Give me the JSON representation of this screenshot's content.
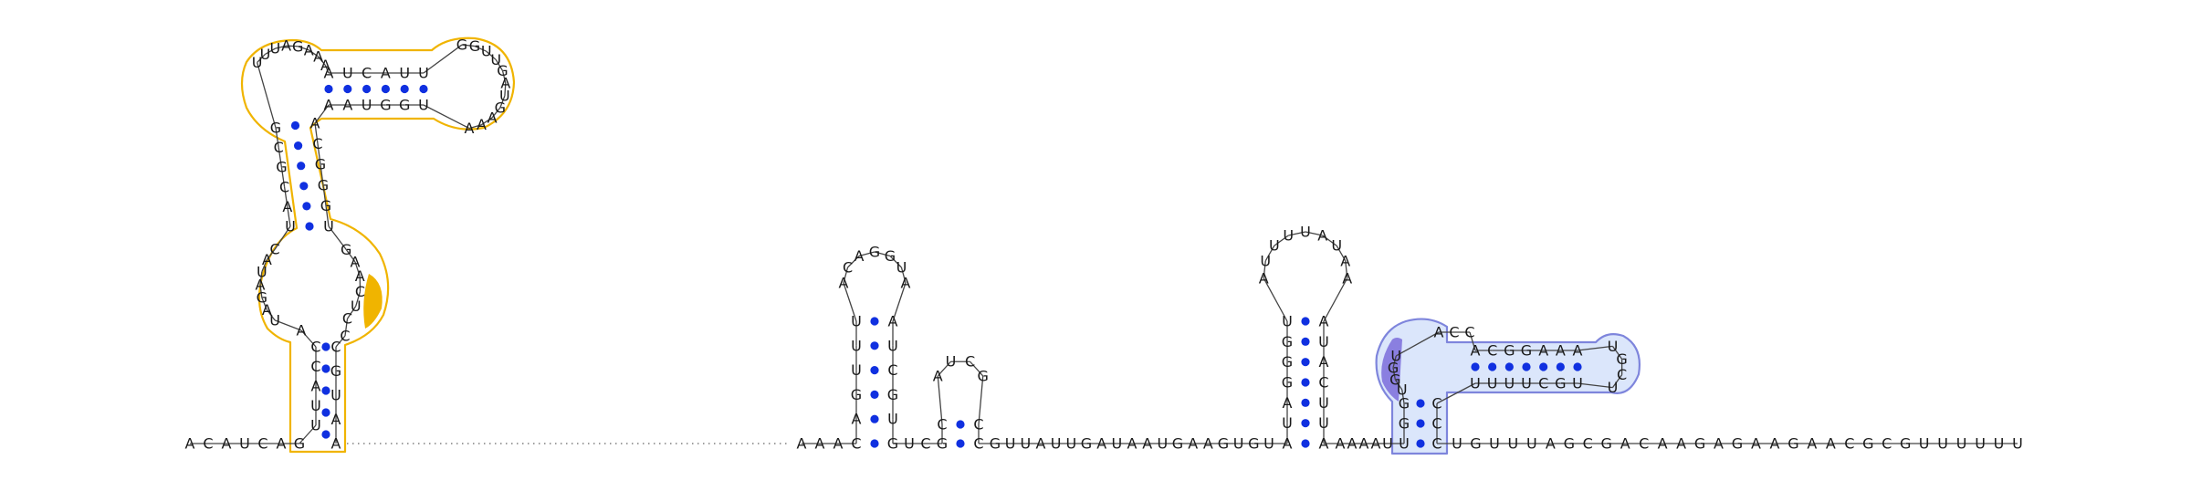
{
  "colors": {
    "domain_orange": "#f0b400",
    "domain_blue_fill": "#dbe6fb",
    "domain_blue_stroke": "#7e85dc",
    "domain_blue_dark": "#8a7fe0",
    "base_pair_dot": "#1030e0"
  },
  "sequence": {
    "left_end": [
      "A",
      "C",
      "A",
      "U",
      "C",
      "A",
      "G"
    ],
    "structure1": {
      "stem1_left": [
        "U",
        "U",
        "A",
        "C",
        "C"
      ],
      "stem1_right": [
        "C",
        "G",
        "U",
        "A",
        "A"
      ],
      "closing_left": [
        "A"
      ],
      "closing_right": [
        "C"
      ],
      "interior_left": [
        "U",
        "A",
        "G",
        "A",
        "U",
        "A",
        "C"
      ],
      "interior_right": [
        "G",
        "A",
        "A",
        "C",
        "U",
        "C"
      ],
      "stem2_left": [
        "U",
        "A",
        "C",
        "G",
        "C",
        "G"
      ],
      "stem2_right": [
        "A",
        "C",
        "G",
        "G",
        "G",
        "U"
      ],
      "terminal_loop_left": [
        "U",
        "U",
        "U",
        "A",
        "G",
        "A",
        "A",
        "A"
      ],
      "stem3_top": [
        "A",
        "U",
        "C",
        "A",
        "U",
        "U"
      ],
      "stem3_bottom": [
        "U",
        "G",
        "G",
        "U",
        "A",
        "A"
      ],
      "terminal_loop_right": [
        "G",
        "G",
        "U",
        "U",
        "G",
        "A",
        "U",
        "G",
        "A",
        "A",
        "A"
      ]
    },
    "linker_gap": "",
    "spacer1": [
      "A",
      "A",
      "A"
    ],
    "hairpin1": {
      "stem_left": [
        "C",
        "A",
        "G",
        "U",
        "U",
        "U"
      ],
      "loop": [
        "A",
        "C",
        "A",
        "G",
        "G",
        "U",
        "A"
      ],
      "stem_right": [
        "A",
        "U",
        "C",
        "G",
        "U",
        "G"
      ]
    },
    "spacer2": [
      "U",
      "C"
    ],
    "hairpin2": {
      "stem_left": [
        "G",
        "C"
      ],
      "loop": [
        "A",
        "U",
        "C",
        "G"
      ],
      "stem_right": [
        "C",
        "C"
      ]
    },
    "spacer3": [
      "G",
      "U",
      "U",
      "A",
      "U",
      "U",
      "G",
      "A",
      "U",
      "A",
      "A",
      "U",
      "G",
      "A",
      "A",
      "G",
      "U",
      "G",
      "U"
    ],
    "hairpin3": {
      "stem_left": [
        "A",
        "U",
        "A",
        "G",
        "G",
        "G",
        "U"
      ],
      "loop": [
        "A",
        "U",
        "U",
        "U",
        "U",
        "A",
        "U",
        "A",
        "A"
      ],
      "stem_right": [
        "A",
        "U",
        "A",
        "C",
        "U",
        "U",
        "A"
      ]
    },
    "spacer4": [
      "A",
      "A",
      "A",
      "A",
      "U"
    ],
    "structure2": {
      "stem_a_left": [
        "U",
        "G",
        "G"
      ],
      "stem_a_right": [
        "C",
        "C",
        "C"
      ],
      "loop_left": [
        "U",
        "G",
        "G",
        "U"
      ],
      "loop_top": [
        "A",
        "C",
        "C"
      ],
      "stem_b_top": [
        "A",
        "C",
        "G",
        "G",
        "A",
        "A",
        "A"
      ],
      "stem_b_bottom": [
        "U",
        "G",
        "C",
        "U",
        "U",
        "U",
        "U"
      ],
      "terminal_loop": [
        "U",
        "G",
        "C",
        "U"
      ]
    },
    "right_end": [
      "U",
      "G",
      "U",
      "U",
      "U",
      "A",
      "G",
      "C",
      "G",
      "A",
      "C",
      "A",
      "A",
      "G",
      "A",
      "G",
      "A",
      "A",
      "G",
      "A",
      "A",
      "C",
      "G",
      "C",
      "G",
      "U",
      "U",
      "U",
      "U",
      "U",
      "U"
    ]
  }
}
